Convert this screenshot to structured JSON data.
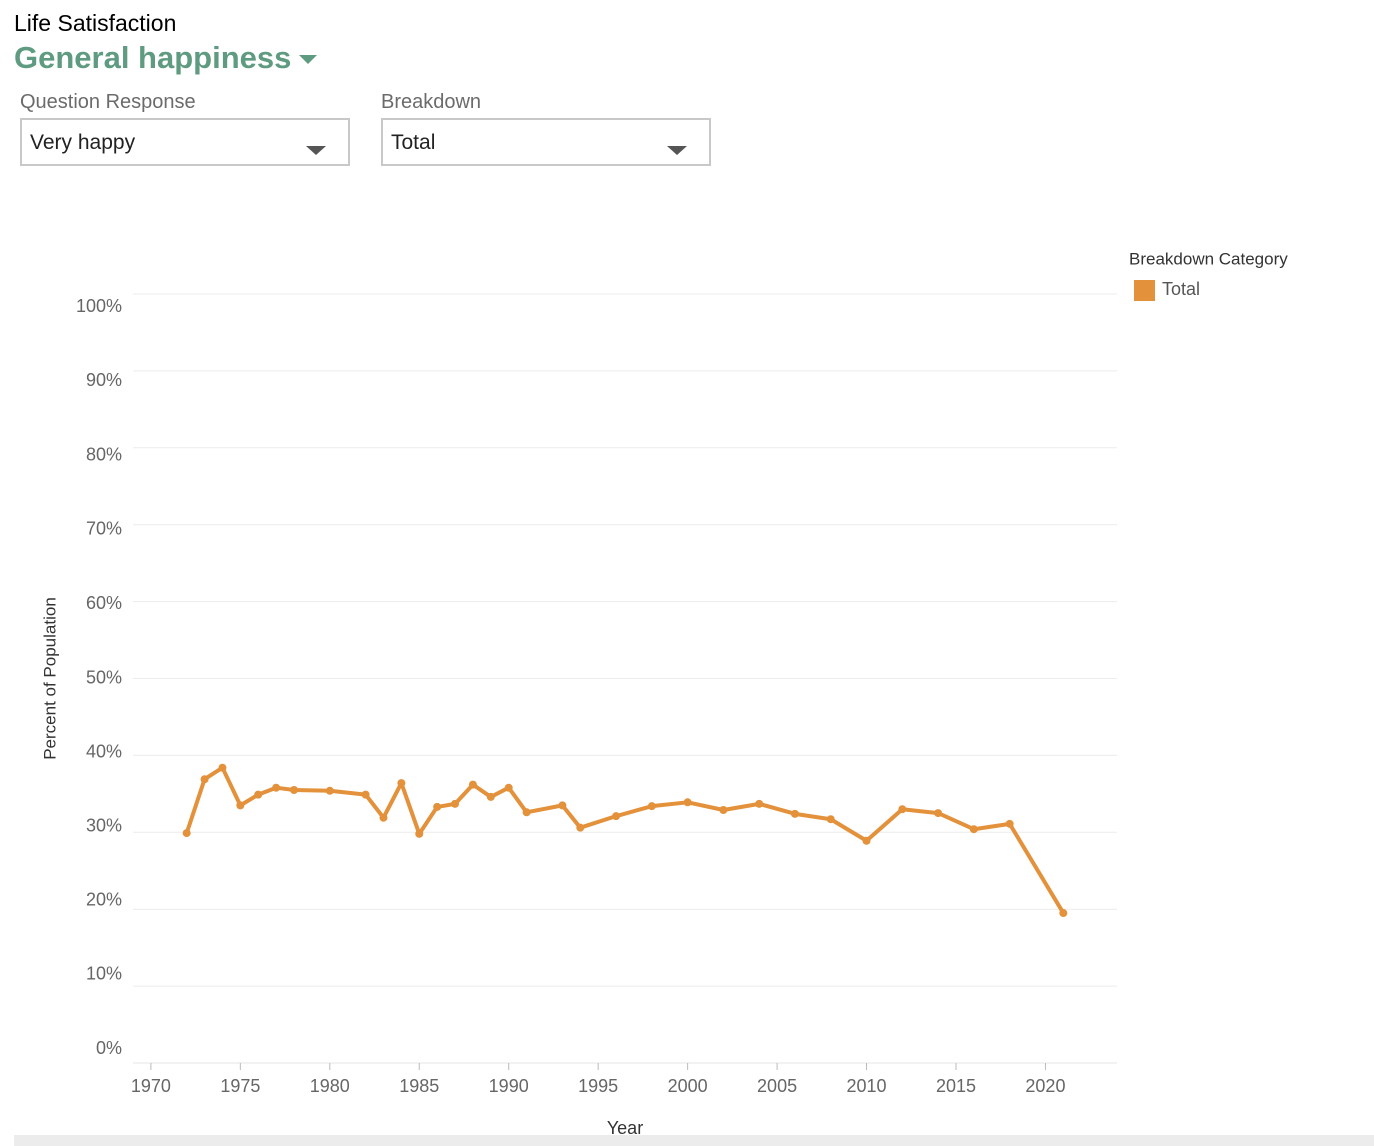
{
  "header": {
    "kicker": "Life Satisfaction",
    "title": "General happiness"
  },
  "filters": [
    {
      "label": "Question Response",
      "value": "Very happy"
    },
    {
      "label": "Breakdown",
      "value": "Total"
    }
  ],
  "chart_data": {
    "type": "line",
    "x_label": "Year",
    "y_label": "Percent of Population",
    "legend_title": "Breakdown Category",
    "legend": "top-right",
    "grid": true,
    "x": [
      1972,
      1973,
      1974,
      1975,
      1976,
      1977,
      1978,
      1980,
      1982,
      1983,
      1984,
      1985,
      1986,
      1987,
      1988,
      1989,
      1990,
      1991,
      1993,
      1994,
      1996,
      1998,
      2000,
      2002,
      2004,
      2006,
      2008,
      2010,
      2012,
      2014,
      2016,
      2018,
      2021
    ],
    "series": [
      {
        "name": "Total",
        "color": "#e3913b",
        "values": [
          29.9,
          36.9,
          38.4,
          33.5,
          34.9,
          35.8,
          35.5,
          35.4,
          34.9,
          31.9,
          36.4,
          29.8,
          33.3,
          33.7,
          36.2,
          34.6,
          35.8,
          32.6,
          33.5,
          30.6,
          32.1,
          33.4,
          33.9,
          32.9,
          33.7,
          32.4,
          31.7,
          28.9,
          33.0,
          32.5,
          30.4,
          31.1,
          19.5
        ]
      }
    ],
    "xlim": [
      1969,
      2024
    ],
    "xticks": [
      1970,
      1975,
      1980,
      1985,
      1990,
      1995,
      2000,
      2005,
      2010,
      2015,
      2020
    ],
    "ylim": [
      0,
      100
    ],
    "yticks": [
      {
        "value": 0,
        "label": "0%"
      },
      {
        "value": 10,
        "label": "10%"
      },
      {
        "value": 20,
        "label": "20%"
      },
      {
        "value": 30,
        "label": "30%"
      },
      {
        "value": 40,
        "label": "40%"
      },
      {
        "value": 50,
        "label": "50%"
      },
      {
        "value": 60,
        "label": "60%"
      },
      {
        "value": 70,
        "label": "70%"
      },
      {
        "value": 80,
        "label": "80%"
      },
      {
        "value": 90,
        "label": "90%"
      },
      {
        "value": 100,
        "label": "100%"
      }
    ]
  }
}
